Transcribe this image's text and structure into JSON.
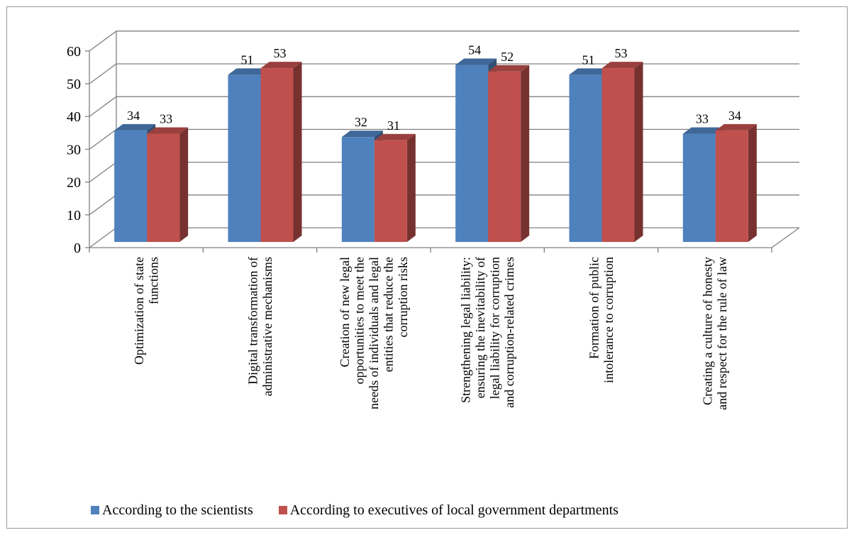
{
  "chart_data": {
    "type": "bar",
    "title": "",
    "xlabel": "",
    "ylabel": "",
    "ylim": [
      0,
      60
    ],
    "yticks": [
      0,
      10,
      20,
      30,
      40,
      50,
      60
    ],
    "grid": true,
    "legend_position": "bottom",
    "categories": [
      [
        "Optimization of state",
        "functions"
      ],
      [
        "Digital transformation of",
        "administrative mechanisms"
      ],
      [
        "Creation of new legal",
        "opportunities to meet the",
        "needs of individuals and legal",
        "entities that reduce the",
        "corruption risks"
      ],
      [
        "Strengthening legal liability:",
        "ensuring the inevitability of",
        "legal liability for corruption",
        "and corruption-related crimes"
      ],
      [
        "Formation of public",
        "intolerance to corruption"
      ],
      [
        "Creating a culture of honesty",
        "and respect for the rule of law"
      ]
    ],
    "series": [
      {
        "name": "According to the scientists",
        "color": "#4f81bd",
        "values": [
          34,
          51,
          32,
          54,
          51,
          33
        ]
      },
      {
        "name": "According to executives of local government departments",
        "color": "#c0504d",
        "values": [
          33,
          53,
          31,
          52,
          53,
          34
        ]
      }
    ]
  }
}
